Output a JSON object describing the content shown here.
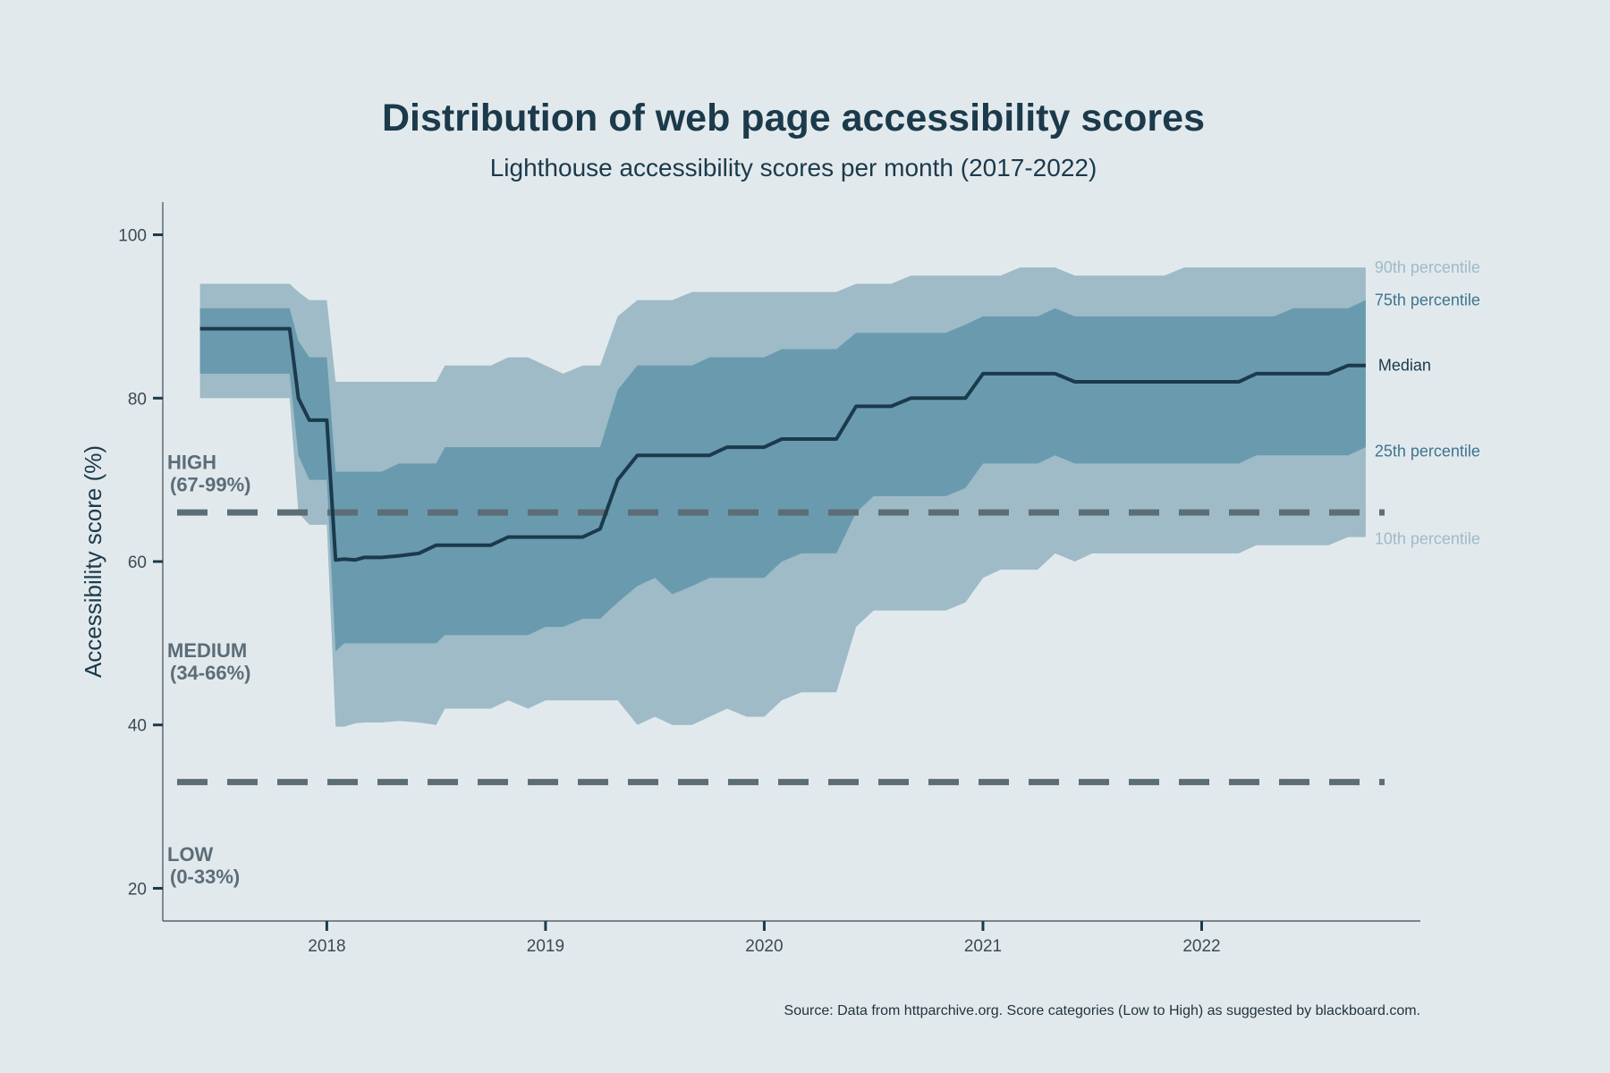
{
  "chart_data": {
    "type": "area",
    "title": "Distribution of web page accessibility scores",
    "subtitle": "Lighthouse accessibility scores per month (2017-2022)",
    "ylabel": "Accessibility score (%)",
    "xlabel": "",
    "source": "Source: Data from httparchive.org. Score categories (Low to High) as suggested by blackboard.com.",
    "xlim": [
      2017.25,
      2023.0
    ],
    "ylim": [
      16,
      104
    ],
    "yticks": [
      20,
      40,
      60,
      80,
      100
    ],
    "xticks": [
      2018,
      2019,
      2020,
      2021,
      2022
    ],
    "grid": false,
    "thresholds": [
      {
        "value": 66,
        "label": ""
      },
      {
        "value": 33,
        "label": ""
      }
    ],
    "categories": [
      {
        "name": "HIGH",
        "range": "(67-99%)",
        "y": 70
      },
      {
        "name": "MEDIUM",
        "range": "(34-66%)",
        "y": 47
      },
      {
        "name": "LOW",
        "range": "(0-33%)",
        "y": 22
      }
    ],
    "colors": {
      "outer_band": "#9ebbc7",
      "inner_band": "#6a9aae",
      "median": "#1b3a4b",
      "threshold": "#5c6d76",
      "background": "#e2e9ed",
      "p90_label": "#9ebbc7",
      "p75_label": "#3e7590",
      "median_label": "#1b3a4b",
      "p25_label": "#3e7590",
      "p10_label": "#9ebbc7"
    },
    "series_labels": {
      "p90": "90th percentile",
      "p75": "75th percentile",
      "median": "Median",
      "p25": "25th percentile",
      "p10": "10th percentile"
    },
    "x": [
      2017.42,
      2017.58,
      2017.75,
      2017.83,
      2017.87,
      2017.92,
      2018.0,
      2018.04,
      2018.08,
      2018.13,
      2018.17,
      2018.25,
      2018.33,
      2018.42,
      2018.5,
      2018.54,
      2018.67,
      2018.75,
      2018.83,
      2018.92,
      2019.0,
      2019.08,
      2019.17,
      2019.25,
      2019.33,
      2019.42,
      2019.5,
      2019.58,
      2019.67,
      2019.75,
      2019.83,
      2019.92,
      2020.0,
      2020.08,
      2020.17,
      2020.25,
      2020.33,
      2020.42,
      2020.5,
      2020.58,
      2020.67,
      2020.75,
      2020.83,
      2020.92,
      2021.0,
      2021.08,
      2021.17,
      2021.25,
      2021.33,
      2021.42,
      2021.5,
      2021.58,
      2021.67,
      2021.75,
      2021.83,
      2021.92,
      2022.0,
      2022.08,
      2022.17,
      2022.25,
      2022.33,
      2022.42,
      2022.5,
      2022.58,
      2022.67,
      2022.75
    ],
    "series": [
      {
        "name": "90th percentile",
        "values": [
          94,
          94,
          94,
          94,
          93,
          92,
          92,
          82,
          82,
          82,
          82,
          82,
          82,
          82,
          82,
          84,
          84,
          84,
          85,
          85,
          84,
          83,
          84,
          84,
          90,
          92,
          92,
          92,
          93,
          93,
          93,
          93,
          93,
          93,
          93,
          93,
          93,
          94,
          94,
          94,
          95,
          95,
          95,
          95,
          95,
          95,
          96,
          96,
          96,
          95,
          95,
          95,
          95,
          95,
          95,
          96,
          96,
          96,
          96,
          96,
          96,
          96,
          96,
          96,
          96,
          96
        ]
      },
      {
        "name": "75th percentile",
        "values": [
          91,
          91,
          91,
          91,
          87,
          85,
          85,
          71,
          71,
          71,
          71,
          71,
          72,
          72,
          72,
          74,
          74,
          74,
          74,
          74,
          74,
          74,
          74,
          74,
          81,
          84,
          84,
          84,
          84,
          85,
          85,
          85,
          85,
          86,
          86,
          86,
          86,
          88,
          88,
          88,
          88,
          88,
          88,
          89,
          90,
          90,
          90,
          90,
          91,
          90,
          90,
          90,
          90,
          90,
          90,
          90,
          90,
          90,
          90,
          90,
          90,
          91,
          91,
          91,
          91,
          92
        ]
      },
      {
        "name": "Median",
        "values": [
          88.5,
          88.5,
          88.5,
          88.5,
          80,
          77.3,
          77.3,
          60.2,
          60.3,
          60.2,
          60.5,
          60.5,
          60.7,
          61,
          62,
          62,
          62,
          62,
          63,
          63,
          63,
          63,
          63,
          64,
          70,
          73,
          73,
          73,
          73,
          73,
          74,
          74,
          74,
          75,
          75,
          75,
          75,
          79,
          79,
          79,
          80,
          80,
          80,
          80,
          83,
          83,
          83,
          83,
          83,
          82,
          82,
          82,
          82,
          82,
          82,
          82,
          82,
          82,
          82,
          83,
          83,
          83,
          83,
          83,
          84,
          84
        ]
      },
      {
        "name": "25th percentile",
        "values": [
          83,
          83,
          83,
          83,
          73,
          70,
          70,
          49,
          50,
          50,
          50,
          50,
          50,
          50,
          50,
          51,
          51,
          51,
          51,
          51,
          52,
          52,
          53,
          53,
          55,
          57,
          58,
          56,
          57,
          58,
          58,
          58,
          58,
          60,
          61,
          61,
          61,
          66,
          68,
          68,
          68,
          68,
          68,
          69,
          72,
          72,
          72,
          72,
          73,
          72,
          72,
          72,
          72,
          72,
          72,
          72,
          72,
          72,
          72,
          73,
          73,
          73,
          73,
          73,
          73,
          74
        ]
      },
      {
        "name": "10th percentile",
        "values": [
          80,
          80,
          80,
          80,
          66,
          64.5,
          64.5,
          39.8,
          39.8,
          40.2,
          40.3,
          40.3,
          40.5,
          40.3,
          40,
          42,
          42,
          42,
          43,
          42,
          43,
          43,
          43,
          43,
          43,
          40,
          41,
          40,
          40,
          41,
          42,
          41,
          41,
          43,
          44,
          44,
          44,
          52,
          54,
          54,
          54,
          54,
          54,
          55,
          58,
          59,
          59,
          59,
          61,
          60,
          61,
          61,
          61,
          61,
          61,
          61,
          61,
          61,
          61,
          62,
          62,
          62,
          62,
          62,
          63,
          63
        ]
      }
    ]
  }
}
